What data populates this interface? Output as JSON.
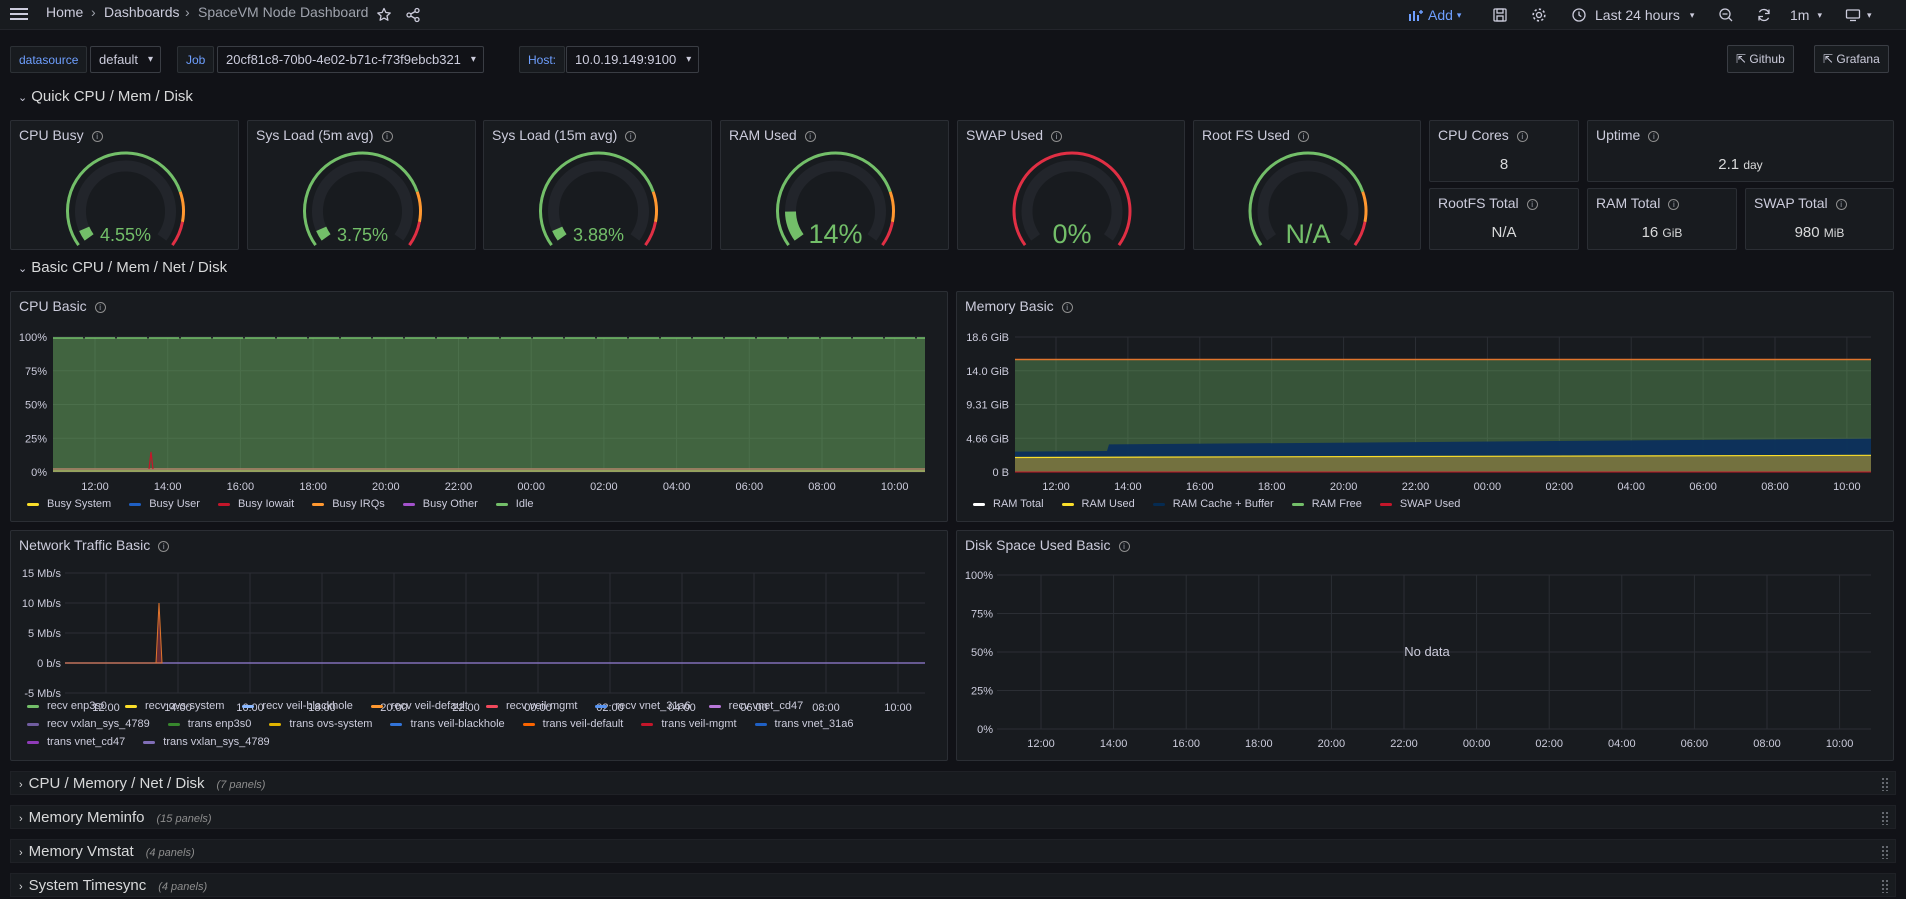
{
  "nav": {
    "breadcrumb_home": "Home",
    "breadcrumb_dashboards": "Dashboards",
    "breadcrumb_current": "SpaceVM Node Dashboard",
    "add_label": "Add",
    "time_range": "Last 24 hours",
    "refresh_interval": "1m"
  },
  "variables": {
    "datasource_label": "datasource",
    "datasource_value": "default",
    "job_label": "Job",
    "job_value": "20cf81c8-70b0-4e02-b71c-f73f9ebcb321",
    "host_label": "Host:",
    "host_value": "10.0.19.149:9100"
  },
  "links": {
    "github": "Github",
    "grafana": "Grafana"
  },
  "rows": {
    "quick": "Quick CPU / Mem / Disk",
    "basic": "Basic CPU / Mem / Net / Disk"
  },
  "collapsed_rows": [
    {
      "title": "CPU / Memory / Net / Disk",
      "count": "(7 panels)"
    },
    {
      "title": "Memory Meminfo",
      "count": "(15 panels)"
    },
    {
      "title": "Memory Vmstat",
      "count": "(4 panels)"
    },
    {
      "title": "System Timesync",
      "count": "(4 panels)"
    }
  ],
  "gauges": [
    {
      "title": "CPU Busy",
      "value": "4.55%",
      "fraction": 0.0455,
      "big": false
    },
    {
      "title": "Sys Load (5m avg)",
      "value": "3.75%",
      "fraction": 0.0375,
      "big": false
    },
    {
      "title": "Sys Load (15m avg)",
      "value": "3.88%",
      "fraction": 0.0388,
      "big": false
    },
    {
      "title": "RAM Used",
      "value": "14%",
      "fraction": 0.14,
      "big": true
    },
    {
      "title": "SWAP Used",
      "value": "0%",
      "fraction": 0,
      "big": true
    },
    {
      "title": "Root FS Used",
      "value": "N/A",
      "fraction": 0,
      "big": true
    }
  ],
  "stats": {
    "cpu_cores": {
      "title": "CPU Cores",
      "value": "8"
    },
    "uptime": {
      "title": "Uptime",
      "value": "2.1",
      "unit": "day"
    },
    "rootfs_total": {
      "title": "RootFS Total",
      "value": "N/A"
    },
    "ram_total": {
      "title": "RAM Total",
      "value": "16",
      "unit": "GiB"
    },
    "swap_total": {
      "title": "SWAP Total",
      "value": "980",
      "unit": "MiB"
    }
  },
  "colors": {
    "green": "#73bf69",
    "yellow": "#fade2a",
    "blue": "#1f60c4",
    "red": "#e02f44",
    "orange": "#ff9830",
    "purple": "#ca95e5",
    "idle": "#73bf69"
  },
  "time_ticks": [
    "12:00",
    "14:00",
    "16:00",
    "18:00",
    "20:00",
    "22:00",
    "00:00",
    "02:00",
    "04:00",
    "06:00",
    "08:00",
    "10:00"
  ],
  "panels": {
    "cpu_basic": {
      "title": "CPU Basic",
      "y_ticks": [
        "100%",
        "75%",
        "50%",
        "25%",
        "0%"
      ],
      "legend": [
        {
          "name": "Busy System",
          "color": "#fade2a"
        },
        {
          "name": "Busy User",
          "color": "#1f60c4"
        },
        {
          "name": "Busy Iowait",
          "color": "#c4162a"
        },
        {
          "name": "Busy IRQs",
          "color": "#ff9830"
        },
        {
          "name": "Busy Other",
          "color": "#a352cc"
        },
        {
          "name": "Idle",
          "color": "#73bf69"
        }
      ]
    },
    "memory_basic": {
      "title": "Memory Basic",
      "y_ticks": [
        "18.6 GiB",
        "14.0 GiB",
        "9.31 GiB",
        "4.66 GiB",
        "0 B"
      ],
      "legend": [
        {
          "name": "RAM Total",
          "color": "#ffffff"
        },
        {
          "name": "RAM Used",
          "color": "#fade2a"
        },
        {
          "name": "RAM Cache + Buffer",
          "color": "#052b51"
        },
        {
          "name": "RAM Free",
          "color": "#73bf69"
        },
        {
          "name": "SWAP Used",
          "color": "#c4162a"
        }
      ]
    },
    "network_basic": {
      "title": "Network Traffic Basic",
      "y_ticks": [
        "15 Mb/s",
        "10 Mb/s",
        "5 Mb/s",
        "0 b/s",
        "-5 Mb/s"
      ],
      "legend": [
        {
          "name": "recv enp3s0",
          "color": "#73bf69"
        },
        {
          "name": "recv ovs-system",
          "color": "#fade2a"
        },
        {
          "name": "recv veil-blackhole",
          "color": "#8ab8ff"
        },
        {
          "name": "recv veil-default",
          "color": "#ff9830"
        },
        {
          "name": "recv veil-mgmt",
          "color": "#f2495c"
        },
        {
          "name": "recv vnet_31a6",
          "color": "#5794f2"
        },
        {
          "name": "recv vnet_cd47",
          "color": "#b877d9"
        },
        {
          "name": "recv vxlan_sys_4789",
          "color": "#705da0"
        },
        {
          "name": "trans enp3s0",
          "color": "#37872d"
        },
        {
          "name": "trans ovs-system",
          "color": "#e0b400"
        },
        {
          "name": "trans veil-blackhole",
          "color": "#3274d9"
        },
        {
          "name": "trans veil-default",
          "color": "#fa6400"
        },
        {
          "name": "trans veil-mgmt",
          "color": "#c4162a"
        },
        {
          "name": "trans vnet_31a6",
          "color": "#1f60c4"
        },
        {
          "name": "trans vnet_cd47",
          "color": "#8f3bb8"
        },
        {
          "name": "trans vxlan_sys_4789",
          "color": "#806eb7"
        }
      ]
    },
    "disk_basic": {
      "title": "Disk Space Used Basic",
      "y_ticks": [
        "100%",
        "75%",
        "50%",
        "25%",
        "0%"
      ],
      "no_data": "No data"
    }
  },
  "chart_data": [
    {
      "type": "area",
      "title": "CPU Basic",
      "ylim": [
        0,
        100
      ],
      "x_ticks": [
        "12:00",
        "14:00",
        "16:00",
        "18:00",
        "20:00",
        "22:00",
        "00:00",
        "02:00",
        "04:00",
        "06:00",
        "08:00",
        "10:00"
      ],
      "series": [
        {
          "name": "Busy System",
          "approx_value": 1
        },
        {
          "name": "Busy User",
          "approx_value": 2
        },
        {
          "name": "Busy Iowait",
          "approx_value": 0.5
        },
        {
          "name": "Busy IRQs",
          "approx_value": 0
        },
        {
          "name": "Busy Other",
          "approx_value": 0
        },
        {
          "name": "Idle",
          "approx_value": 96
        }
      ]
    },
    {
      "type": "area",
      "title": "Memory Basic",
      "x_ticks": [
        "12:00",
        "14:00",
        "16:00",
        "18:00",
        "20:00",
        "22:00",
        "00:00",
        "02:00",
        "04:00",
        "06:00",
        "08:00",
        "10:00"
      ],
      "series": [
        {
          "name": "RAM Total",
          "value_gib": 15.5
        },
        {
          "name": "RAM Used",
          "start_gib": 1.9,
          "end_gib": 2.2
        },
        {
          "name": "RAM Cache + Buffer",
          "start_gib": 2.8,
          "end_gib": 4.6
        },
        {
          "name": "RAM Free"
        },
        {
          "name": "SWAP Used",
          "value_gib": 0
        }
      ]
    },
    {
      "type": "line",
      "title": "Network Traffic Basic",
      "ylim": [
        -5,
        15
      ],
      "x_ticks": [
        "12:00",
        "14:00",
        "16:00",
        "18:00",
        "20:00",
        "22:00",
        "00:00",
        "02:00",
        "04:00",
        "06:00",
        "08:00",
        "10:00"
      ],
      "notes": "flat near 0 with a single spike ~10 Mb/s around 13:30"
    }
  ]
}
